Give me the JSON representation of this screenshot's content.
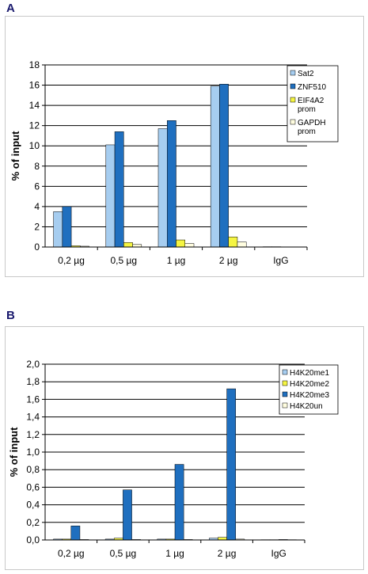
{
  "chart_data": [
    {
      "panel": "A",
      "type": "bar",
      "ylabel": "% of input",
      "ylim": [
        0,
        18
      ],
      "yticks": [
        "0",
        "2",
        "4",
        "6",
        "8",
        "10",
        "12",
        "14",
        "16",
        "18"
      ],
      "categories": [
        "0,2 µg",
        "0,5 µg",
        "1 µg",
        "2 µg",
        "IgG"
      ],
      "legend_position": "top-right",
      "series": [
        {
          "name": "Sat2",
          "legend_lines": [
            "Sat2"
          ],
          "color": "#a6cdf0",
          "values": [
            3.5,
            10.1,
            11.7,
            15.9,
            0.03
          ]
        },
        {
          "name": "ZNF510",
          "legend_lines": [
            "ZNF510"
          ],
          "color": "#1f6fbf",
          "values": [
            4.0,
            11.4,
            12.5,
            16.1,
            0.03
          ]
        },
        {
          "name": "EIF4A2 prom",
          "legend_lines": [
            "EIF4A2",
            "prom"
          ],
          "color": "#f5f542",
          "values": [
            0.12,
            0.45,
            0.7,
            1.0,
            0.02
          ]
        },
        {
          "name": "GAPDH prom",
          "legend_lines": [
            "GAPDH",
            "prom"
          ],
          "color": "#fffde0",
          "values": [
            0.08,
            0.25,
            0.35,
            0.5,
            0.02
          ]
        }
      ]
    },
    {
      "panel": "B",
      "type": "bar",
      "ylabel": "% of input",
      "ylim": [
        0,
        2.0
      ],
      "yticks": [
        "0,0",
        "0,2",
        "0,4",
        "0,6",
        "0,8",
        "1,0",
        "1,2",
        "1,4",
        "1,6",
        "1,8",
        "2,0"
      ],
      "categories": [
        "0,2 µg",
        "0,5 µg",
        "1 µg",
        "2 µg",
        "IgG"
      ],
      "legend_position": "top-right",
      "series": [
        {
          "name": "H4K20me1",
          "legend_lines": [
            "H4K20me1"
          ],
          "color": "#a6cdf0",
          "values": [
            0.01,
            0.01,
            0.01,
            0.02,
            0.003
          ]
        },
        {
          "name": "H4K20me2",
          "legend_lines": [
            "H4K20me2"
          ],
          "color": "#f5f542",
          "values": [
            0.01,
            0.02,
            0.01,
            0.03,
            0.003
          ]
        },
        {
          "name": "H4K20me3",
          "legend_lines": [
            "H4K20me3"
          ],
          "color": "#1f6fbf",
          "values": [
            0.16,
            0.57,
            0.86,
            1.72,
            0.005
          ]
        },
        {
          "name": "H4K20un",
          "legend_lines": [
            "H4K20un"
          ],
          "color": "#fffde0",
          "values": [
            0.005,
            0.005,
            0.005,
            0.01,
            0.003
          ]
        }
      ]
    }
  ],
  "panels": {
    "a_letter": "A",
    "b_letter": "B"
  }
}
